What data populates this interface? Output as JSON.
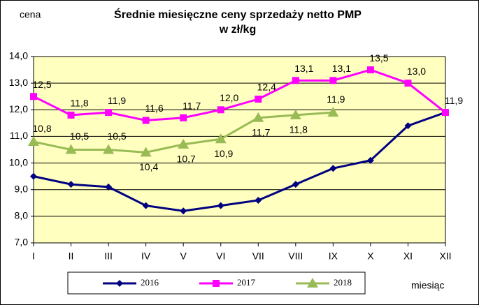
{
  "chart_data": {
    "type": "line",
    "title": "Średnie miesięczne ceny sprzedaży netto PMP",
    "subtitle": "w zł/kg",
    "y_label": "cena",
    "x_label": "miesiąc",
    "categories": [
      "I",
      "II",
      "III",
      "IV",
      "V",
      "VI",
      "VII",
      "VIII",
      "IX",
      "X",
      "XI",
      "XII"
    ],
    "series": [
      {
        "name": "2016",
        "color": "#000080",
        "marker": "diamond",
        "values": [
          9.5,
          9.2,
          9.1,
          8.4,
          8.2,
          8.4,
          8.6,
          9.2,
          9.8,
          10.1,
          11.4,
          11.9
        ]
      },
      {
        "name": "2017",
        "color": "#ff00ff",
        "marker": "square",
        "values": [
          12.5,
          11.8,
          11.9,
          11.6,
          11.7,
          12.0,
          12.4,
          13.1,
          13.1,
          13.5,
          13.0,
          11.9
        ],
        "value_labels": [
          "12,5",
          "11,8",
          "11,9",
          "11,6",
          "11,7",
          "12,0",
          "12,4",
          "13,1",
          "13,1",
          "13,5",
          "13,0",
          "11,9"
        ]
      },
      {
        "name": "2018",
        "color": "#99bb55",
        "marker": "triangle",
        "values": [
          10.8,
          10.5,
          10.5,
          10.4,
          10.7,
          10.9,
          11.7,
          11.8,
          11.9,
          null,
          null,
          null
        ],
        "value_labels": [
          "10,8",
          "10,5",
          "10,5",
          "10,4",
          "10,7",
          "10,9",
          "11,7",
          "11,8",
          "11,9",
          null,
          null,
          null
        ]
      }
    ],
    "ylim": [
      7,
      14
    ],
    "yticks": [
      {
        "value": 7,
        "label": "7,0"
      },
      {
        "value": 8,
        "label": "8,0"
      },
      {
        "value": 9,
        "label": "9,0"
      },
      {
        "value": 10,
        "label": "10,0"
      },
      {
        "value": 11,
        "label": "11,0"
      },
      {
        "value": 12,
        "label": "12,0"
      },
      {
        "value": 13,
        "label": "13,0"
      },
      {
        "value": 14,
        "label": "14,0"
      }
    ],
    "grid": true,
    "legend": "bottom"
  }
}
